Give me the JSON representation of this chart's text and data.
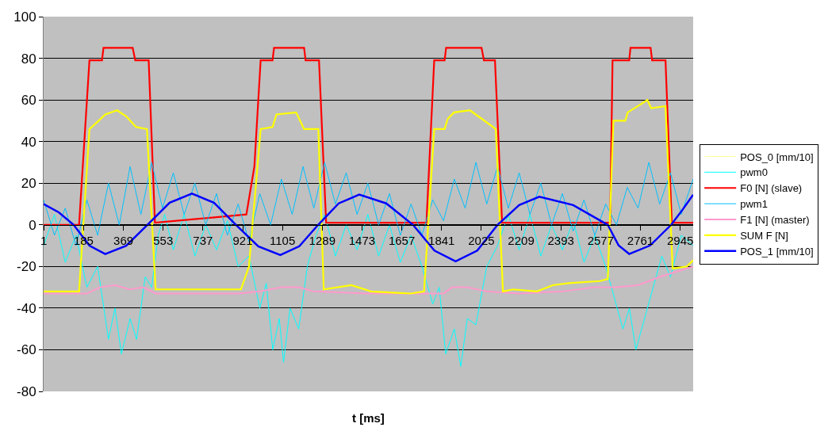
{
  "chart_data": {
    "type": "line",
    "xlabel": "t [ms]",
    "xlim": [
      0,
      3005
    ],
    "xticks": [
      1,
      185,
      369,
      553,
      737,
      921,
      1105,
      1289,
      1473,
      1657,
      1841,
      2025,
      2209,
      2393,
      2577,
      2761,
      2945
    ],
    "ylim": [
      -80,
      100
    ],
    "yticks": [
      -80,
      -60,
      -40,
      -20,
      0,
      20,
      40,
      60,
      80,
      100
    ],
    "grid": "y",
    "legend": "right",
    "marker": "none",
    "line_style": "solid",
    "series": [
      {
        "name": "POS_0 [mm/10]",
        "color": "#ffff99",
        "values": [
          null
        ]
      },
      {
        "name": "pwm0",
        "color": "#00ffff",
        "x": [
          0,
          50,
          100,
          150,
          200,
          250,
          300,
          330,
          360,
          400,
          430,
          470,
          500,
          530,
          560,
          600,
          650,
          700,
          750,
          800,
          850,
          900,
          950,
          1000,
          1030,
          1060,
          1090,
          1110,
          1140,
          1180,
          1220,
          1260,
          1300,
          1350,
          1400,
          1450,
          1500,
          1550,
          1600,
          1650,
          1700,
          1750,
          1800,
          1830,
          1860,
          1900,
          1930,
          1960,
          2000,
          2050,
          2100,
          2150,
          2200,
          2250,
          2300,
          2350,
          2400,
          2450,
          2500,
          2550,
          2600,
          2640,
          2680,
          2710,
          2740,
          2780,
          2820,
          2860,
          2900,
          2950,
          3005
        ],
        "values": [
          -10,
          5,
          -18,
          -5,
          -30,
          -20,
          -55,
          -40,
          -62,
          -45,
          -55,
          -25,
          -30,
          -5,
          5,
          -12,
          5,
          -15,
          0,
          -12,
          2,
          -20,
          -15,
          -40,
          -28,
          -60,
          -45,
          -66,
          -40,
          -50,
          -20,
          -5,
          5,
          -15,
          0,
          -12,
          5,
          -15,
          0,
          -18,
          -5,
          -20,
          -38,
          -30,
          -62,
          -50,
          -68,
          -45,
          -48,
          -20,
          -10,
          5,
          -12,
          5,
          -15,
          0,
          -12,
          2,
          -18,
          -5,
          -20,
          -35,
          -50,
          -40,
          -60,
          -45,
          -30,
          -15,
          -25,
          -5,
          -10
        ]
      },
      {
        "name": "F0 [N] (slave)",
        "color": "#ff0000",
        "x": [
          0,
          164,
          212,
          270,
          277,
          412,
          424,
          486,
          515,
          938,
          975,
          1004,
          1059,
          1066,
          1205,
          1212,
          1274,
          1307,
          1771,
          1807,
          1855,
          1862,
          2026,
          2037,
          2088,
          2121,
          2621,
          2632,
          2709,
          2715,
          2808,
          2815,
          2877,
          2906,
          3005
        ],
        "values": [
          0,
          0,
          79,
          79,
          85,
          85,
          79,
          79,
          1,
          5,
          28,
          79,
          79,
          85,
          85,
          79,
          79,
          1,
          1,
          79,
          79,
          85,
          85,
          79,
          79,
          1,
          1,
          79,
          79,
          85,
          85,
          79,
          79,
          1,
          1
        ]
      },
      {
        "name": "pwm1",
        "color": "#00c0ff",
        "x": [
          0,
          50,
          100,
          150,
          200,
          250,
          300,
          350,
          400,
          450,
          500,
          550,
          600,
          650,
          700,
          750,
          800,
          850,
          900,
          950,
          1000,
          1050,
          1100,
          1150,
          1200,
          1250,
          1300,
          1350,
          1400,
          1450,
          1500,
          1550,
          1600,
          1650,
          1700,
          1750,
          1800,
          1850,
          1900,
          1950,
          2000,
          2050,
          2100,
          2150,
          2200,
          2250,
          2300,
          2350,
          2400,
          2450,
          2500,
          2550,
          2600,
          2650,
          2700,
          2750,
          2800,
          2850,
          2900,
          2950,
          3005
        ],
        "values": [
          12,
          -5,
          8,
          -10,
          12,
          -5,
          20,
          0,
          28,
          5,
          30,
          8,
          25,
          5,
          20,
          0,
          15,
          -5,
          10,
          -8,
          15,
          0,
          22,
          5,
          28,
          8,
          30,
          10,
          25,
          5,
          20,
          0,
          15,
          -5,
          10,
          -5,
          12,
          2,
          22,
          8,
          30,
          10,
          28,
          8,
          25,
          5,
          20,
          0,
          15,
          -3,
          12,
          -5,
          10,
          0,
          18,
          8,
          30,
          10,
          25,
          5,
          22
        ]
      },
      {
        "name": "F1 [N] (master)",
        "color": "#ff99cc",
        "x": [
          0,
          200,
          260,
          330,
          400,
          460,
          520,
          700,
          900,
          1000,
          1100,
          1180,
          1250,
          1500,
          1700,
          1850,
          1890,
          1960,
          2050,
          2200,
          2400,
          2550,
          2650,
          2750,
          2850,
          3005
        ],
        "values": [
          -33,
          -33,
          -30,
          -29,
          -31,
          -30,
          -33,
          -33,
          -33,
          -32,
          -30,
          -30,
          -32,
          -33,
          -33,
          -33,
          -30,
          -30,
          -32,
          -33,
          -32,
          -30,
          -30,
          -29,
          -25,
          -20
        ]
      },
      {
        "name": "SUM F [N]",
        "color": "#ffff00",
        "x": [
          0,
          164,
          212,
          255,
          285,
          340,
          383,
          427,
          478,
          518,
          913,
          950,
          1004,
          1059,
          1077,
          1168,
          1205,
          1271,
          1296,
          1424,
          1515,
          1698,
          1760,
          1807,
          1855,
          1870,
          1899,
          1972,
          2026,
          2092,
          2125,
          2172,
          2282,
          2355,
          2430,
          2574,
          2610,
          2636,
          2691,
          2702,
          2764,
          2793,
          2811,
          2877,
          2910,
          2976,
          3005
        ],
        "values": [
          -32,
          -32,
          46,
          50,
          53,
          55,
          52,
          47,
          46,
          -31,
          -31,
          -20,
          46,
          47,
          53,
          54,
          46,
          46,
          -31,
          -29,
          -32,
          -33,
          -32,
          46,
          46,
          51,
          54,
          55,
          51,
          46,
          -32,
          -31,
          -32,
          -29,
          -28,
          -27,
          -26,
          50,
          50,
          54,
          58,
          60,
          56,
          57,
          -21,
          -20,
          -17
        ]
      },
      {
        "name": "POS_1 [mm/10]",
        "color": "#0000ff",
        "x": [
          0,
          70,
          139,
          212,
          285,
          382,
          480,
          583,
          686,
          788,
          890,
          993,
          1095,
          1183,
          1270,
          1365,
          1460,
          1585,
          1709,
          1808,
          1906,
          2006,
          2100,
          2200,
          2293,
          2450,
          2610,
          2660,
          2709,
          2806,
          2903,
          2954,
          3005
        ],
        "values": [
          10,
          6,
          0,
          -10,
          -14,
          -10,
          0,
          10.6,
          15,
          10.6,
          0,
          -10.3,
          -14.5,
          -10.3,
          0,
          10.3,
          14.5,
          10.3,
          0,
          -12.4,
          -17.5,
          -12.4,
          0,
          9.5,
          13.5,
          9.5,
          0,
          -9.9,
          -14,
          -9.9,
          0,
          7,
          14.5
        ]
      }
    ]
  }
}
